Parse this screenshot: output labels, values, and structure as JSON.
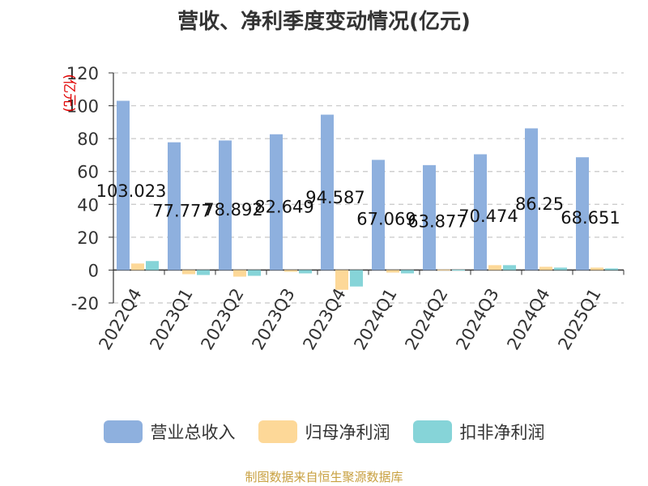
{
  "chart_data": {
    "type": "bar",
    "title": "营收、净利季度变动情况(亿元)",
    "ylabel": "(亿元)",
    "ylim": [
      -20,
      120
    ],
    "yticks": [
      -20,
      0,
      20,
      40,
      60,
      80,
      100,
      120
    ],
    "grid": true,
    "legend_position": "bottom",
    "categories": [
      "2022Q4",
      "2023Q1",
      "2023Q2",
      "2023Q3",
      "2023Q4",
      "2024Q1",
      "2024Q2",
      "2024Q3",
      "2024Q4",
      "2025Q1"
    ],
    "series": [
      {
        "name": "营业总收入",
        "color": "#8eb0de",
        "values": [
          103.023,
          77.777,
          78.892,
          82.649,
          94.587,
          67.069,
          63.877,
          70.474,
          86.25,
          68.651
        ],
        "labels": [
          "103.023",
          "77.777",
          "78.892",
          "82.649",
          "94.587",
          "67.069",
          "63.877",
          "70.474",
          "86.25",
          "68.651"
        ]
      },
      {
        "name": "归母净利润",
        "color": "#fdd898",
        "values": [
          4.0,
          -2.5,
          -4.0,
          -1.0,
          -12.0,
          -1.5,
          0.3,
          3.0,
          2.0,
          1.5
        ]
      },
      {
        "name": "扣非净利润",
        "color": "#86d4d8",
        "values": [
          5.5,
          -3.0,
          -3.5,
          -2.0,
          -10.0,
          -2.0,
          0.2,
          3.0,
          1.5,
          1.0
        ]
      }
    ]
  },
  "source_note": "制图数据来自恒生聚源数据库"
}
